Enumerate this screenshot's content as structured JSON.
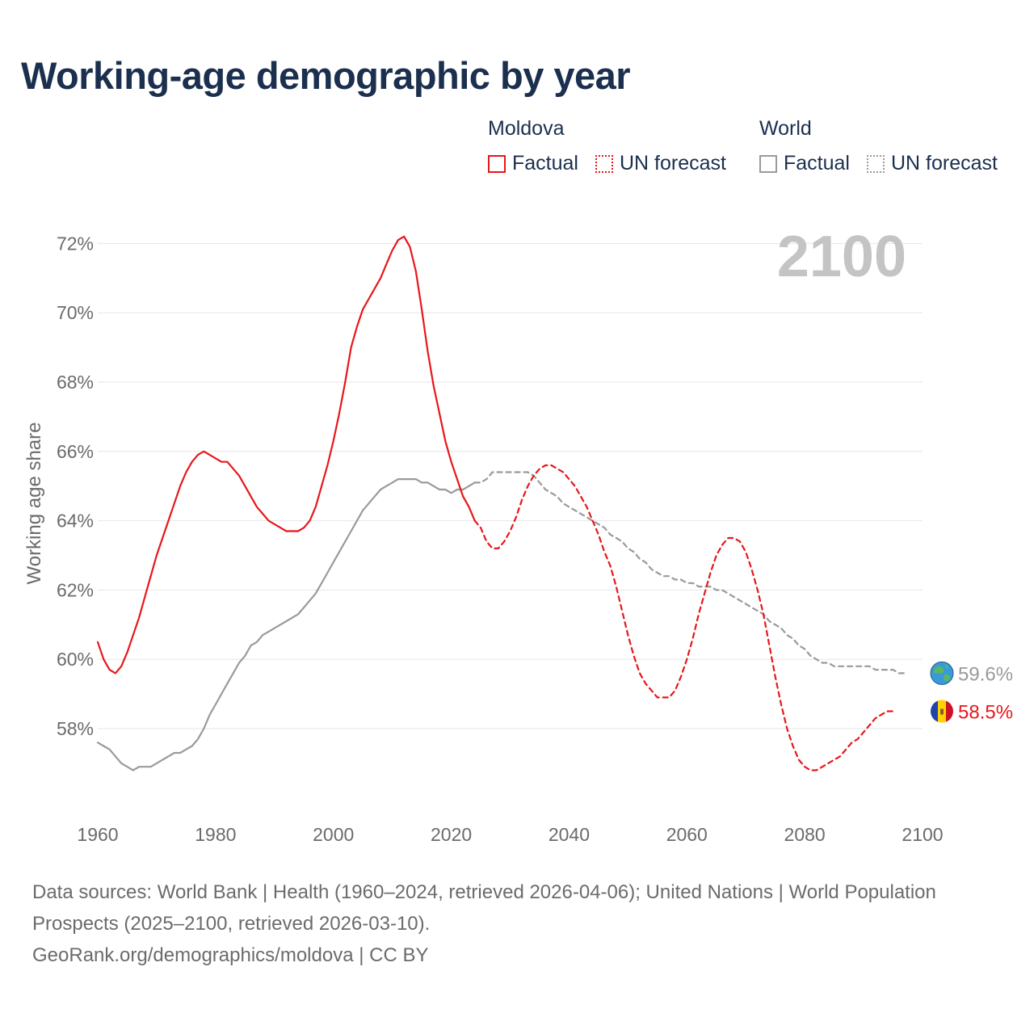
{
  "title": "Working-age demographic by year",
  "legend": {
    "groups": [
      {
        "label": "Moldova",
        "items": [
          {
            "label": "Factual"
          },
          {
            "label": "UN forecast"
          }
        ]
      },
      {
        "label": "World",
        "items": [
          {
            "label": "Factual"
          },
          {
            "label": "UN forecast"
          }
        ]
      }
    ]
  },
  "colors": {
    "moldova": "#e8161b",
    "world": "#9a9a9a",
    "year_watermark": "#c4c4c4",
    "grid": "#e6e6e6",
    "axis_text": "#6b6b6b"
  },
  "icons": {
    "world": "globe-icon",
    "moldova": "moldova-flag-icon"
  },
  "footer": {
    "sources": "Data sources: World Bank | Health (1960–2024, retrieved 2026-04-06); United Nations | World Population Prospects (2025–2100, retrieved 2026-03-10).",
    "credit": "GeoRank.org/demographics/moldova | CC BY"
  },
  "chart_data": {
    "type": "line",
    "year_label": "2100",
    "ylabel": "Working age share",
    "xlim": [
      1960,
      2100
    ],
    "ylim": [
      56,
      72.6
    ],
    "x_ticks": [
      "1960",
      "1980",
      "2000",
      "2020",
      "2040",
      "2060",
      "2080",
      "2100"
    ],
    "y_ticks": [
      {
        "value": 58,
        "label": "58%"
      },
      {
        "value": 60,
        "label": "60%"
      },
      {
        "value": 62,
        "label": "62%"
      },
      {
        "value": 64,
        "label": "64%"
      },
      {
        "value": 66,
        "label": "66%"
      },
      {
        "value": 68,
        "label": "68%"
      },
      {
        "value": 70,
        "label": "70%"
      },
      {
        "value": 72,
        "label": "72%"
      }
    ],
    "series": [
      {
        "name": "Moldova",
        "segment": "Factual",
        "points": [
          [
            1960,
            60.5
          ],
          [
            1961,
            60.0
          ],
          [
            1962,
            59.7
          ],
          [
            1963,
            59.6
          ],
          [
            1964,
            59.8
          ],
          [
            1965,
            60.2
          ],
          [
            1966,
            60.7
          ],
          [
            1967,
            61.2
          ],
          [
            1968,
            61.8
          ],
          [
            1969,
            62.4
          ],
          [
            1970,
            63.0
          ],
          [
            1971,
            63.5
          ],
          [
            1972,
            64.0
          ],
          [
            1973,
            64.5
          ],
          [
            1974,
            65.0
          ],
          [
            1975,
            65.4
          ],
          [
            1976,
            65.7
          ],
          [
            1977,
            65.9
          ],
          [
            1978,
            66.0
          ],
          [
            1979,
            65.9
          ],
          [
            1980,
            65.8
          ],
          [
            1981,
            65.7
          ],
          [
            1982,
            65.7
          ],
          [
            1983,
            65.5
          ],
          [
            1984,
            65.3
          ],
          [
            1985,
            65.0
          ],
          [
            1986,
            64.7
          ],
          [
            1987,
            64.4
          ],
          [
            1988,
            64.2
          ],
          [
            1989,
            64.0
          ],
          [
            1990,
            63.9
          ],
          [
            1991,
            63.8
          ],
          [
            1992,
            63.7
          ],
          [
            1993,
            63.7
          ],
          [
            1994,
            63.7
          ],
          [
            1995,
            63.8
          ],
          [
            1996,
            64.0
          ],
          [
            1997,
            64.4
          ],
          [
            1998,
            65.0
          ],
          [
            1999,
            65.6
          ],
          [
            2000,
            66.3
          ],
          [
            2001,
            67.1
          ],
          [
            2002,
            68.0
          ],
          [
            2003,
            69.0
          ],
          [
            2004,
            69.6
          ],
          [
            2005,
            70.1
          ],
          [
            2006,
            70.4
          ],
          [
            2007,
            70.7
          ],
          [
            2008,
            71.0
          ],
          [
            2009,
            71.4
          ],
          [
            2010,
            71.8
          ],
          [
            2011,
            72.1
          ],
          [
            2012,
            72.2
          ],
          [
            2013,
            71.9
          ],
          [
            2014,
            71.2
          ],
          [
            2015,
            70.1
          ],
          [
            2016,
            68.9
          ],
          [
            2017,
            67.9
          ],
          [
            2018,
            67.1
          ],
          [
            2019,
            66.3
          ],
          [
            2020,
            65.7
          ],
          [
            2021,
            65.2
          ],
          [
            2022,
            64.7
          ],
          [
            2023,
            64.4
          ],
          [
            2024,
            64.0
          ]
        ]
      },
      {
        "name": "Moldova",
        "segment": "UN forecast",
        "points": [
          [
            2024,
            64.0
          ],
          [
            2025,
            63.8
          ],
          [
            2026,
            63.4
          ],
          [
            2027,
            63.2
          ],
          [
            2028,
            63.2
          ],
          [
            2029,
            63.4
          ],
          [
            2030,
            63.7
          ],
          [
            2031,
            64.1
          ],
          [
            2032,
            64.6
          ],
          [
            2033,
            65.0
          ],
          [
            2034,
            65.3
          ],
          [
            2035,
            65.5
          ],
          [
            2036,
            65.6
          ],
          [
            2037,
            65.6
          ],
          [
            2038,
            65.5
          ],
          [
            2039,
            65.4
          ],
          [
            2040,
            65.2
          ],
          [
            2041,
            65.0
          ],
          [
            2042,
            64.7
          ],
          [
            2043,
            64.4
          ],
          [
            2044,
            64.0
          ],
          [
            2045,
            63.6
          ],
          [
            2046,
            63.1
          ],
          [
            2047,
            62.7
          ],
          [
            2048,
            62.1
          ],
          [
            2049,
            61.4
          ],
          [
            2050,
            60.7
          ],
          [
            2051,
            60.1
          ],
          [
            2052,
            59.6
          ],
          [
            2053,
            59.3
          ],
          [
            2054,
            59.1
          ],
          [
            2055,
            58.9
          ],
          [
            2056,
            58.9
          ],
          [
            2057,
            58.9
          ],
          [
            2058,
            59.1
          ],
          [
            2059,
            59.5
          ],
          [
            2060,
            60.0
          ],
          [
            2061,
            60.6
          ],
          [
            2062,
            61.3
          ],
          [
            2063,
            61.9
          ],
          [
            2064,
            62.5
          ],
          [
            2065,
            63.0
          ],
          [
            2066,
            63.3
          ],
          [
            2067,
            63.5
          ],
          [
            2068,
            63.5
          ],
          [
            2069,
            63.4
          ],
          [
            2070,
            63.1
          ],
          [
            2071,
            62.6
          ],
          [
            2072,
            62.0
          ],
          [
            2073,
            61.3
          ],
          [
            2074,
            60.4
          ],
          [
            2075,
            59.5
          ],
          [
            2076,
            58.7
          ],
          [
            2077,
            58.0
          ],
          [
            2078,
            57.5
          ],
          [
            2079,
            57.1
          ],
          [
            2080,
            56.9
          ],
          [
            2081,
            56.8
          ],
          [
            2082,
            56.8
          ],
          [
            2083,
            56.9
          ],
          [
            2084,
            57.0
          ],
          [
            2085,
            57.1
          ],
          [
            2086,
            57.2
          ],
          [
            2087,
            57.4
          ],
          [
            2088,
            57.6
          ],
          [
            2089,
            57.7
          ],
          [
            2090,
            57.9
          ],
          [
            2091,
            58.1
          ],
          [
            2092,
            58.3
          ],
          [
            2093,
            58.4
          ],
          [
            2094,
            58.5
          ],
          [
            2095,
            58.5
          ]
        ]
      },
      {
        "name": "World",
        "segment": "Factual",
        "points": [
          [
            1960,
            57.6
          ],
          [
            1961,
            57.5
          ],
          [
            1962,
            57.4
          ],
          [
            1963,
            57.2
          ],
          [
            1964,
            57.0
          ],
          [
            1965,
            56.9
          ],
          [
            1966,
            56.8
          ],
          [
            1967,
            56.9
          ],
          [
            1968,
            56.9
          ],
          [
            1969,
            56.9
          ],
          [
            1970,
            57.0
          ],
          [
            1971,
            57.1
          ],
          [
            1972,
            57.2
          ],
          [
            1973,
            57.3
          ],
          [
            1974,
            57.3
          ],
          [
            1975,
            57.4
          ],
          [
            1976,
            57.5
          ],
          [
            1977,
            57.7
          ],
          [
            1978,
            58.0
          ],
          [
            1979,
            58.4
          ],
          [
            1980,
            58.7
          ],
          [
            1981,
            59.0
          ],
          [
            1982,
            59.3
          ],
          [
            1983,
            59.6
          ],
          [
            1984,
            59.9
          ],
          [
            1985,
            60.1
          ],
          [
            1986,
            60.4
          ],
          [
            1987,
            60.5
          ],
          [
            1988,
            60.7
          ],
          [
            1989,
            60.8
          ],
          [
            1990,
            60.9
          ],
          [
            1991,
            61.0
          ],
          [
            1992,
            61.1
          ],
          [
            1993,
            61.2
          ],
          [
            1994,
            61.3
          ],
          [
            1995,
            61.5
          ],
          [
            1996,
            61.7
          ],
          [
            1997,
            61.9
          ],
          [
            1998,
            62.2
          ],
          [
            1999,
            62.5
          ],
          [
            2000,
            62.8
          ],
          [
            2001,
            63.1
          ],
          [
            2002,
            63.4
          ],
          [
            2003,
            63.7
          ],
          [
            2004,
            64.0
          ],
          [
            2005,
            64.3
          ],
          [
            2006,
            64.5
          ],
          [
            2007,
            64.7
          ],
          [
            2008,
            64.9
          ],
          [
            2009,
            65.0
          ],
          [
            2010,
            65.1
          ],
          [
            2011,
            65.2
          ],
          [
            2012,
            65.2
          ],
          [
            2013,
            65.2
          ],
          [
            2014,
            65.2
          ],
          [
            2015,
            65.1
          ],
          [
            2016,
            65.1
          ],
          [
            2017,
            65.0
          ],
          [
            2018,
            64.9
          ],
          [
            2019,
            64.9
          ],
          [
            2020,
            64.8
          ],
          [
            2021,
            64.9
          ],
          [
            2022,
            64.9
          ],
          [
            2023,
            65.0
          ],
          [
            2024,
            65.1
          ]
        ]
      },
      {
        "name": "World",
        "segment": "UN forecast",
        "points": [
          [
            2024,
            65.1
          ],
          [
            2025,
            65.1
          ],
          [
            2026,
            65.2
          ],
          [
            2027,
            65.4
          ],
          [
            2028,
            65.4
          ],
          [
            2029,
            65.4
          ],
          [
            2030,
            65.4
          ],
          [
            2031,
            65.4
          ],
          [
            2032,
            65.4
          ],
          [
            2033,
            65.4
          ],
          [
            2034,
            65.3
          ],
          [
            2035,
            65.1
          ],
          [
            2036,
            64.9
          ],
          [
            2037,
            64.8
          ],
          [
            2038,
            64.7
          ],
          [
            2039,
            64.5
          ],
          [
            2040,
            64.4
          ],
          [
            2041,
            64.3
          ],
          [
            2042,
            64.2
          ],
          [
            2043,
            64.1
          ],
          [
            2044,
            64.0
          ],
          [
            2045,
            63.9
          ],
          [
            2046,
            63.8
          ],
          [
            2047,
            63.6
          ],
          [
            2048,
            63.5
          ],
          [
            2049,
            63.4
          ],
          [
            2050,
            63.2
          ],
          [
            2051,
            63.1
          ],
          [
            2052,
            62.9
          ],
          [
            2053,
            62.8
          ],
          [
            2054,
            62.6
          ],
          [
            2055,
            62.5
          ],
          [
            2056,
            62.4
          ],
          [
            2057,
            62.4
          ],
          [
            2058,
            62.3
          ],
          [
            2059,
            62.3
          ],
          [
            2060,
            62.2
          ],
          [
            2061,
            62.2
          ],
          [
            2062,
            62.1
          ],
          [
            2063,
            62.1
          ],
          [
            2064,
            62.1
          ],
          [
            2065,
            62.0
          ],
          [
            2066,
            62.0
          ],
          [
            2067,
            61.9
          ],
          [
            2068,
            61.8
          ],
          [
            2069,
            61.7
          ],
          [
            2070,
            61.6
          ],
          [
            2071,
            61.5
          ],
          [
            2072,
            61.4
          ],
          [
            2073,
            61.3
          ],
          [
            2074,
            61.1
          ],
          [
            2075,
            61.0
          ],
          [
            2076,
            60.9
          ],
          [
            2077,
            60.7
          ],
          [
            2078,
            60.6
          ],
          [
            2079,
            60.4
          ],
          [
            2080,
            60.3
          ],
          [
            2081,
            60.1
          ],
          [
            2082,
            60.0
          ],
          [
            2083,
            59.9
          ],
          [
            2084,
            59.9
          ],
          [
            2085,
            59.8
          ],
          [
            2086,
            59.8
          ],
          [
            2087,
            59.8
          ],
          [
            2088,
            59.8
          ],
          [
            2089,
            59.8
          ],
          [
            2090,
            59.8
          ],
          [
            2091,
            59.8
          ],
          [
            2092,
            59.7
          ],
          [
            2093,
            59.7
          ],
          [
            2094,
            59.7
          ],
          [
            2095,
            59.7
          ],
          [
            2096,
            59.6
          ],
          [
            2097,
            59.6
          ]
        ]
      }
    ],
    "end_labels": [
      {
        "name": "World",
        "value": 59.6,
        "label": "59.6%"
      },
      {
        "name": "Moldova",
        "value": 58.5,
        "label": "58.5%"
      }
    ]
  }
}
